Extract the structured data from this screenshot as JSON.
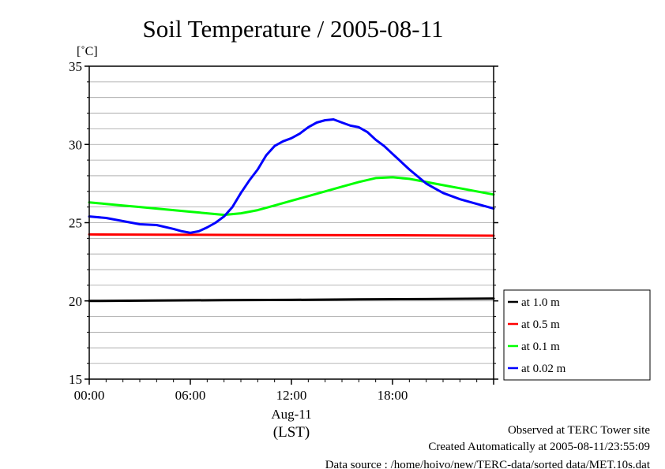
{
  "chart_data": {
    "type": "line",
    "title": "Soil Temperature / 2005-08-11",
    "ylabel": "[˚C]",
    "xlabel": "(LST)",
    "date_label": "Aug-11",
    "ylim": [
      15,
      35
    ],
    "yticks": [
      "15",
      "20",
      "25",
      "30",
      "35"
    ],
    "xlim": [
      0,
      24
    ],
    "xticks": [
      "00:00",
      "06:00",
      "12:00",
      "18:00"
    ],
    "grid": true,
    "legend_position": "right-bottom, outside plot",
    "series": [
      {
        "name": "at 1.0 m",
        "color": "#000000",
        "x": [
          0,
          4,
          8,
          12,
          16,
          20,
          24
        ],
        "y": [
          20.0,
          20.03,
          20.05,
          20.07,
          20.1,
          20.12,
          20.15
        ]
      },
      {
        "name": "at 0.5 m",
        "color": "#ff0000",
        "x": [
          0,
          4,
          8,
          12,
          16,
          20,
          24
        ],
        "y": [
          24.25,
          24.23,
          24.22,
          24.21,
          24.2,
          24.19,
          24.17
        ]
      },
      {
        "name": "at 0.1 m",
        "color": "#00ff00",
        "x": [
          0,
          1,
          2,
          3,
          4,
          5,
          6,
          7,
          8,
          9,
          10,
          11,
          12,
          13,
          14,
          15,
          16,
          17,
          18,
          19,
          20,
          21,
          22,
          23,
          24
        ],
        "y": [
          26.3,
          26.2,
          26.1,
          26.0,
          25.9,
          25.8,
          25.7,
          25.6,
          25.5,
          25.6,
          25.8,
          26.1,
          26.4,
          26.7,
          27.0,
          27.3,
          27.6,
          27.85,
          27.9,
          27.8,
          27.6,
          27.4,
          27.2,
          27.0,
          26.8
        ]
      },
      {
        "name": "at 0.02 m",
        "color": "#0000ff",
        "x": [
          0,
          1,
          2,
          3,
          4,
          5,
          5.5,
          6,
          6.5,
          7,
          7.5,
          8,
          8.5,
          9,
          9.5,
          10,
          10.5,
          11,
          11.5,
          12,
          12.5,
          13,
          13.5,
          14,
          14.5,
          15,
          15.5,
          16,
          16.5,
          17,
          17.5,
          18,
          19,
          20,
          21,
          22,
          23,
          24
        ],
        "y": [
          25.4,
          25.3,
          25.1,
          24.9,
          24.85,
          24.6,
          24.45,
          24.35,
          24.45,
          24.7,
          25.0,
          25.4,
          26.0,
          26.9,
          27.7,
          28.4,
          29.3,
          29.9,
          30.2,
          30.4,
          30.7,
          31.1,
          31.4,
          31.55,
          31.6,
          31.4,
          31.2,
          31.1,
          30.8,
          30.3,
          29.9,
          29.4,
          28.4,
          27.5,
          26.9,
          26.5,
          26.2,
          25.9
        ]
      }
    ]
  },
  "footer": {
    "site": "Observed at TERC Tower site",
    "created": "Created Automatically at 2005-08-11/23:55:09",
    "source": "Data source : /home/hoivo/new/TERC-data/sorted  data/MET.10s.dat"
  }
}
